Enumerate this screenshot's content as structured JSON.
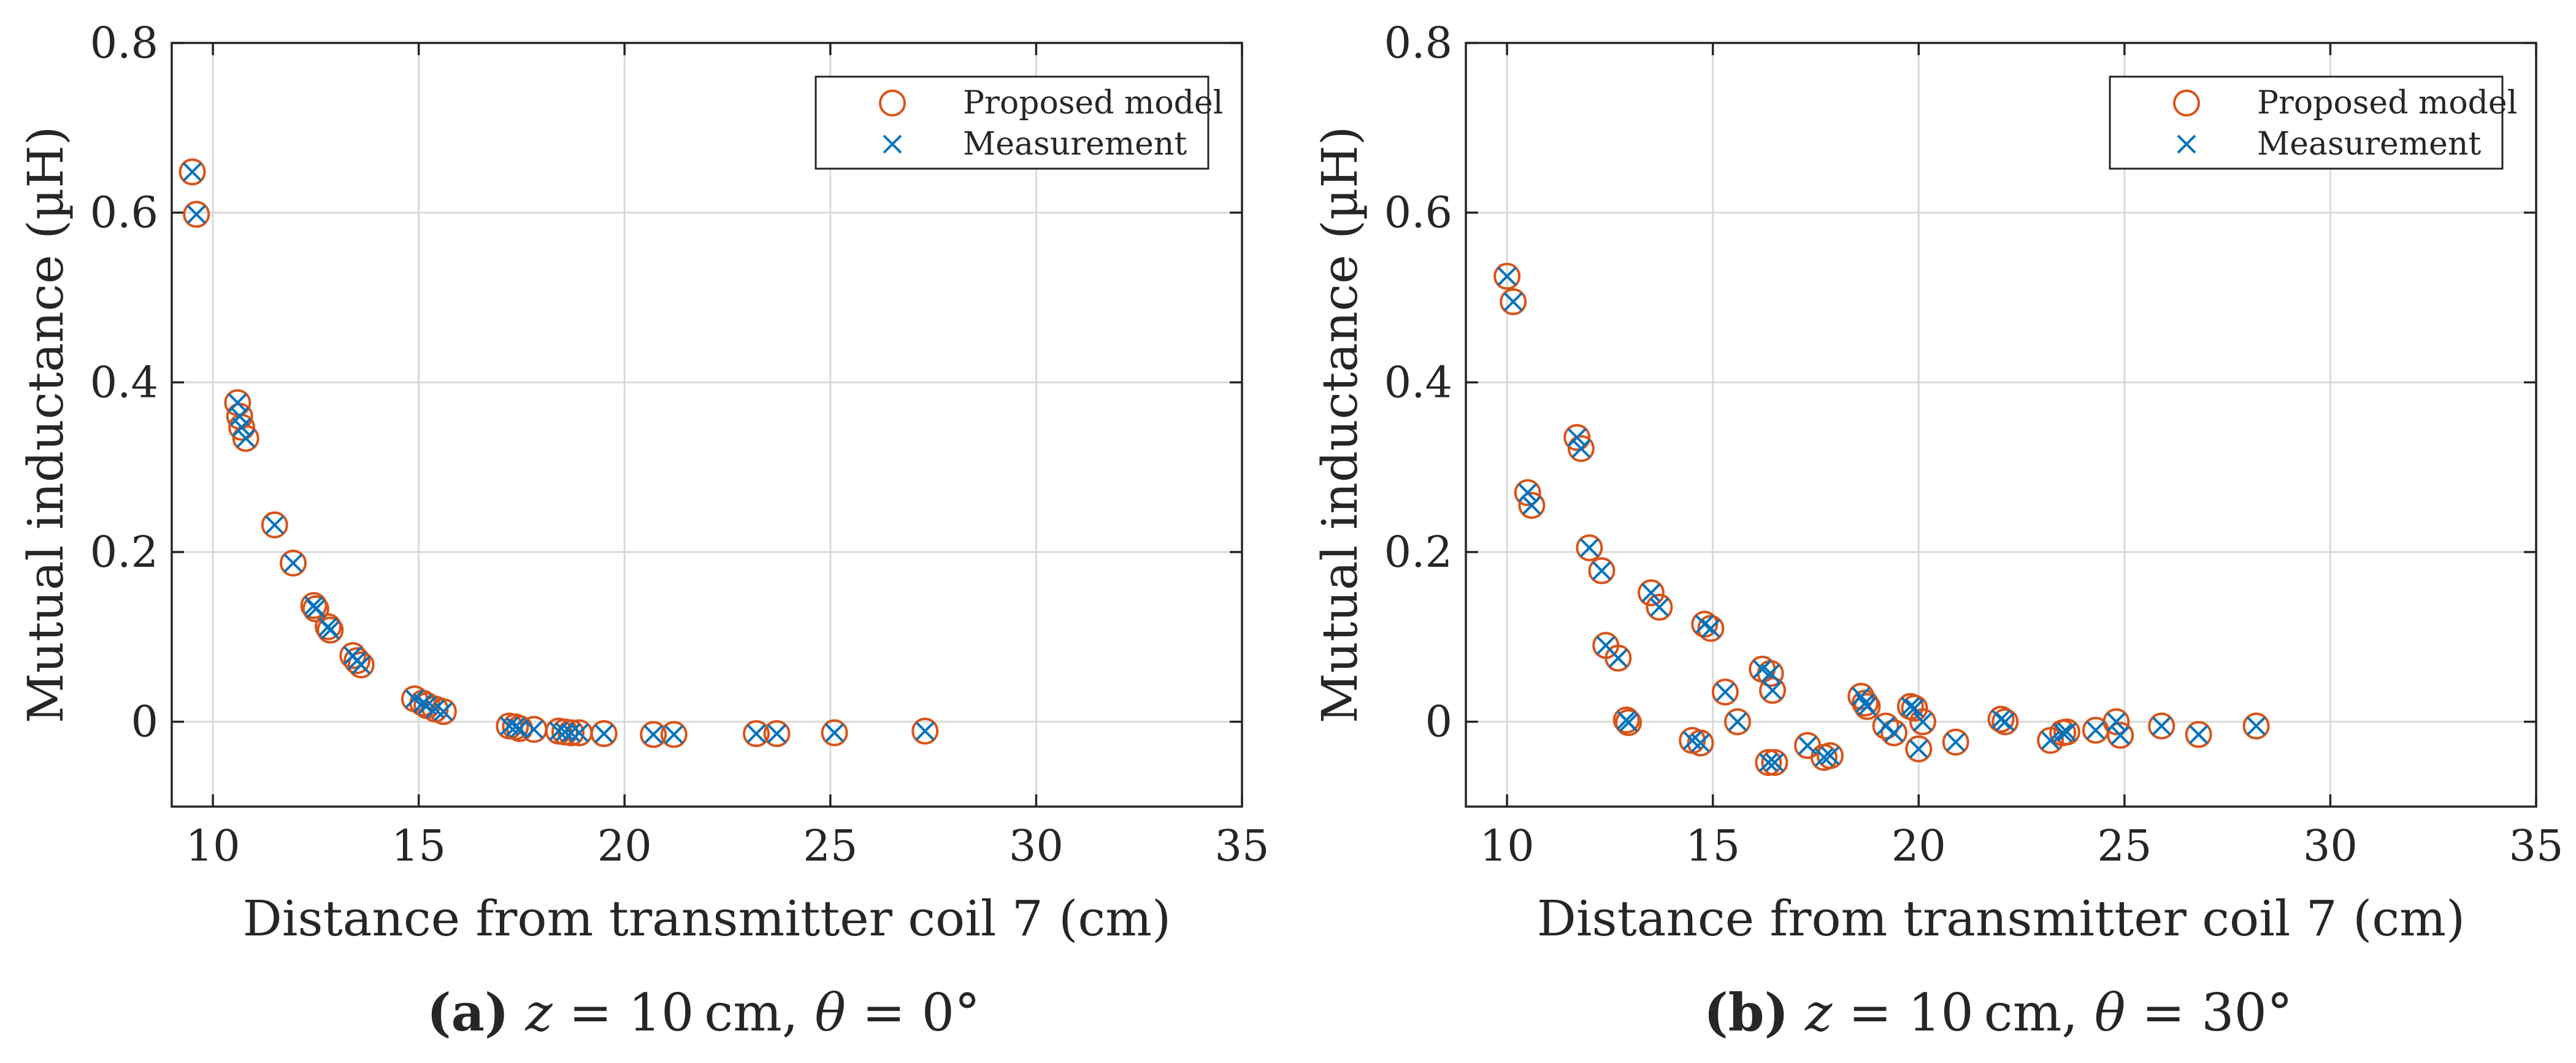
{
  "chart_data": [
    {
      "type": "scatter",
      "xlabel": "Distance from transmitter coil 7 (cm)",
      "ylabel": "Mutual inductance (µH)",
      "xlim": [
        9,
        35
      ],
      "ylim": [
        -0.1,
        0.8
      ],
      "xticks": [
        10,
        15,
        20,
        25,
        30,
        35
      ],
      "yticks": [
        0,
        0.2,
        0.4,
        0.6,
        0.8
      ],
      "xtick_labels": [
        "10",
        "15",
        "20",
        "25",
        "30",
        "35"
      ],
      "ytick_labels": [
        "0",
        "0.2",
        "0.4",
        "0.6",
        "0.8"
      ],
      "grid": true,
      "legend_position": "top-right",
      "caption": {
        "label": "(a)",
        "z_sym": "z",
        "z_text": " = 10 cm, ",
        "theta_sym": "θ",
        "theta_text": " = 0°"
      },
      "series": [
        {
          "name": "Proposed model",
          "marker": "circle",
          "color": "#d95319",
          "x": [
            9.5,
            9.6,
            10.6,
            10.65,
            10.7,
            10.8,
            11.5,
            11.95,
            12.45,
            12.5,
            12.8,
            12.85,
            13.4,
            13.5,
            13.6,
            14.9,
            15.1,
            15.2,
            15.4,
            15.6,
            17.2,
            17.35,
            17.45,
            17.8,
            18.4,
            18.55,
            18.7,
            18.9,
            19.5,
            20.7,
            21.2,
            23.2,
            23.7,
            25.1,
            27.3
          ],
          "y": [
            0.648,
            0.598,
            0.376,
            0.36,
            0.347,
            0.334,
            0.232,
            0.187,
            0.137,
            0.133,
            0.112,
            0.108,
            0.078,
            0.072,
            0.067,
            0.027,
            0.022,
            0.019,
            0.015,
            0.012,
            -0.005,
            -0.006,
            -0.008,
            -0.009,
            -0.011,
            -0.012,
            -0.013,
            -0.013,
            -0.014,
            -0.015,
            -0.015,
            -0.014,
            -0.014,
            -0.013,
            -0.011
          ]
        },
        {
          "name": "Measurement",
          "marker": "cross",
          "color": "#0072bd",
          "x": [
            9.5,
            9.6,
            10.6,
            10.65,
            10.7,
            10.8,
            11.5,
            11.95,
            12.45,
            12.5,
            12.8,
            12.85,
            13.4,
            13.5,
            13.6,
            14.9,
            15.1,
            15.2,
            15.4,
            15.6,
            17.2,
            17.35,
            17.45,
            17.8,
            18.4,
            18.55,
            18.7,
            18.9,
            19.5,
            20.7,
            21.2,
            23.2,
            23.7,
            25.1,
            27.3
          ],
          "y": [
            0.648,
            0.598,
            0.376,
            0.36,
            0.347,
            0.334,
            0.232,
            0.187,
            0.137,
            0.133,
            0.112,
            0.108,
            0.078,
            0.072,
            0.067,
            0.027,
            0.022,
            0.019,
            0.015,
            0.012,
            -0.005,
            -0.006,
            -0.008,
            -0.009,
            -0.011,
            -0.012,
            -0.013,
            -0.013,
            -0.014,
            -0.015,
            -0.015,
            -0.014,
            -0.014,
            -0.013,
            -0.011
          ]
        }
      ]
    },
    {
      "type": "scatter",
      "xlabel": "Distance from transmitter coil 7 (cm)",
      "ylabel": "Mutual inductance (µH)",
      "xlim": [
        9,
        35
      ],
      "ylim": [
        -0.1,
        0.8
      ],
      "xticks": [
        10,
        15,
        20,
        25,
        30,
        35
      ],
      "yticks": [
        0,
        0.2,
        0.4,
        0.6,
        0.8
      ],
      "xtick_labels": [
        "10",
        "15",
        "20",
        "25",
        "30",
        "35"
      ],
      "ytick_labels": [
        "0",
        "0.2",
        "0.4",
        "0.6",
        "0.8"
      ],
      "grid": true,
      "legend_position": "top-right",
      "caption": {
        "label": "(b)",
        "z_sym": "z",
        "z_text": " = 10 cm, ",
        "theta_sym": "θ",
        "theta_text": " = 30°"
      },
      "series": [
        {
          "name": "Proposed model",
          "marker": "circle",
          "color": "#d95319",
          "x": [
            10.0,
            10.15,
            10.5,
            10.6,
            11.7,
            11.8,
            12.0,
            12.3,
            12.4,
            12.7,
            12.9,
            12.95,
            13.5,
            13.7,
            14.5,
            14.7,
            14.8,
            14.95,
            15.3,
            15.6,
            16.2,
            16.35,
            16.4,
            16.45,
            16.5,
            17.3,
            17.7,
            17.85,
            18.6,
            18.7,
            18.75,
            19.2,
            19.4,
            19.8,
            19.9,
            20.0,
            20.1,
            20.9,
            22.0,
            22.1,
            23.2,
            23.5,
            23.6,
            24.3,
            24.8,
            24.9,
            25.9,
            26.8,
            28.2
          ],
          "y": [
            0.525,
            0.495,
            0.27,
            0.255,
            0.335,
            0.322,
            0.205,
            0.178,
            0.09,
            0.075,
            0.002,
            -0.001,
            0.152,
            0.135,
            -0.022,
            -0.025,
            0.115,
            0.11,
            0.035,
            0.0,
            0.062,
            -0.048,
            0.057,
            0.037,
            -0.048,
            -0.028,
            -0.042,
            -0.04,
            0.03,
            0.022,
            0.018,
            -0.005,
            -0.013,
            0.018,
            0.016,
            -0.032,
            0.0,
            -0.024,
            0.003,
            0.0,
            -0.022,
            -0.013,
            -0.012,
            -0.01,
            0.0,
            -0.016,
            -0.005,
            -0.015,
            -0.005
          ]
        },
        {
          "name": "Measurement",
          "marker": "cross",
          "color": "#0072bd",
          "x": [
            10.0,
            10.15,
            10.5,
            10.6,
            11.7,
            11.8,
            12.0,
            12.3,
            12.4,
            12.7,
            12.9,
            12.95,
            13.5,
            13.7,
            14.5,
            14.7,
            14.8,
            14.95,
            15.3,
            15.6,
            16.2,
            16.35,
            16.4,
            16.45,
            16.5,
            17.3,
            17.7,
            17.85,
            18.6,
            18.7,
            18.75,
            19.2,
            19.4,
            19.8,
            19.9,
            20.0,
            20.1,
            20.9,
            22.0,
            22.1,
            23.2,
            23.5,
            23.6,
            24.3,
            24.8,
            24.9,
            25.9,
            26.8,
            28.2
          ],
          "y": [
            0.525,
            0.495,
            0.27,
            0.255,
            0.335,
            0.322,
            0.205,
            0.178,
            0.09,
            0.075,
            0.002,
            -0.001,
            0.152,
            0.135,
            -0.022,
            -0.025,
            0.115,
            0.11,
            0.035,
            0.0,
            0.062,
            -0.048,
            0.057,
            0.037,
            -0.048,
            -0.028,
            -0.042,
            -0.04,
            0.03,
            0.022,
            0.018,
            -0.005,
            -0.013,
            0.018,
            0.016,
            -0.032,
            0.0,
            -0.024,
            0.003,
            0.0,
            -0.022,
            -0.013,
            -0.012,
            -0.01,
            0.0,
            -0.016,
            -0.005,
            -0.015,
            -0.005
          ]
        }
      ]
    }
  ]
}
